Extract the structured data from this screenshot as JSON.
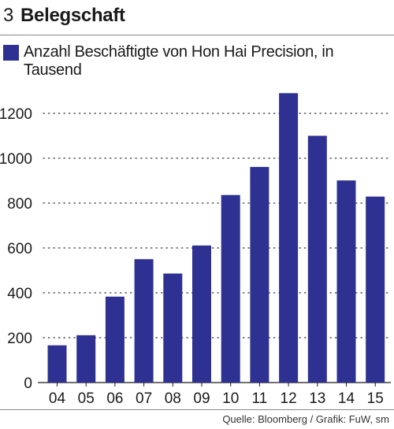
{
  "header": {
    "number": "3",
    "title": "Belegschaft"
  },
  "legend": {
    "label": "Anzahl Beschäftigte von Hon Hai Precision, in Tausend"
  },
  "source": "Quelle: Bloomberg / Grafik: FuW, sm",
  "colors": {
    "bar": "#2e3192",
    "grid": "#333333"
  },
  "chart_data": {
    "type": "bar",
    "categories": [
      "04",
      "05",
      "06",
      "07",
      "08",
      "09",
      "10",
      "11",
      "12",
      "13",
      "14",
      "15"
    ],
    "series": [
      {
        "name": "Anzahl Beschäftigte von Hon Hai Precision, in Tausend",
        "values": [
          166,
          211,
          383,
          550,
          486,
          611,
          836,
          961,
          1290,
          1100,
          901,
          829
        ]
      }
    ],
    "yticks": [
      0,
      200,
      400,
      600,
      800,
      1000,
      1200
    ],
    "ylim": [
      0,
      1300
    ],
    "grid": true,
    "legend_position": "top-left"
  }
}
